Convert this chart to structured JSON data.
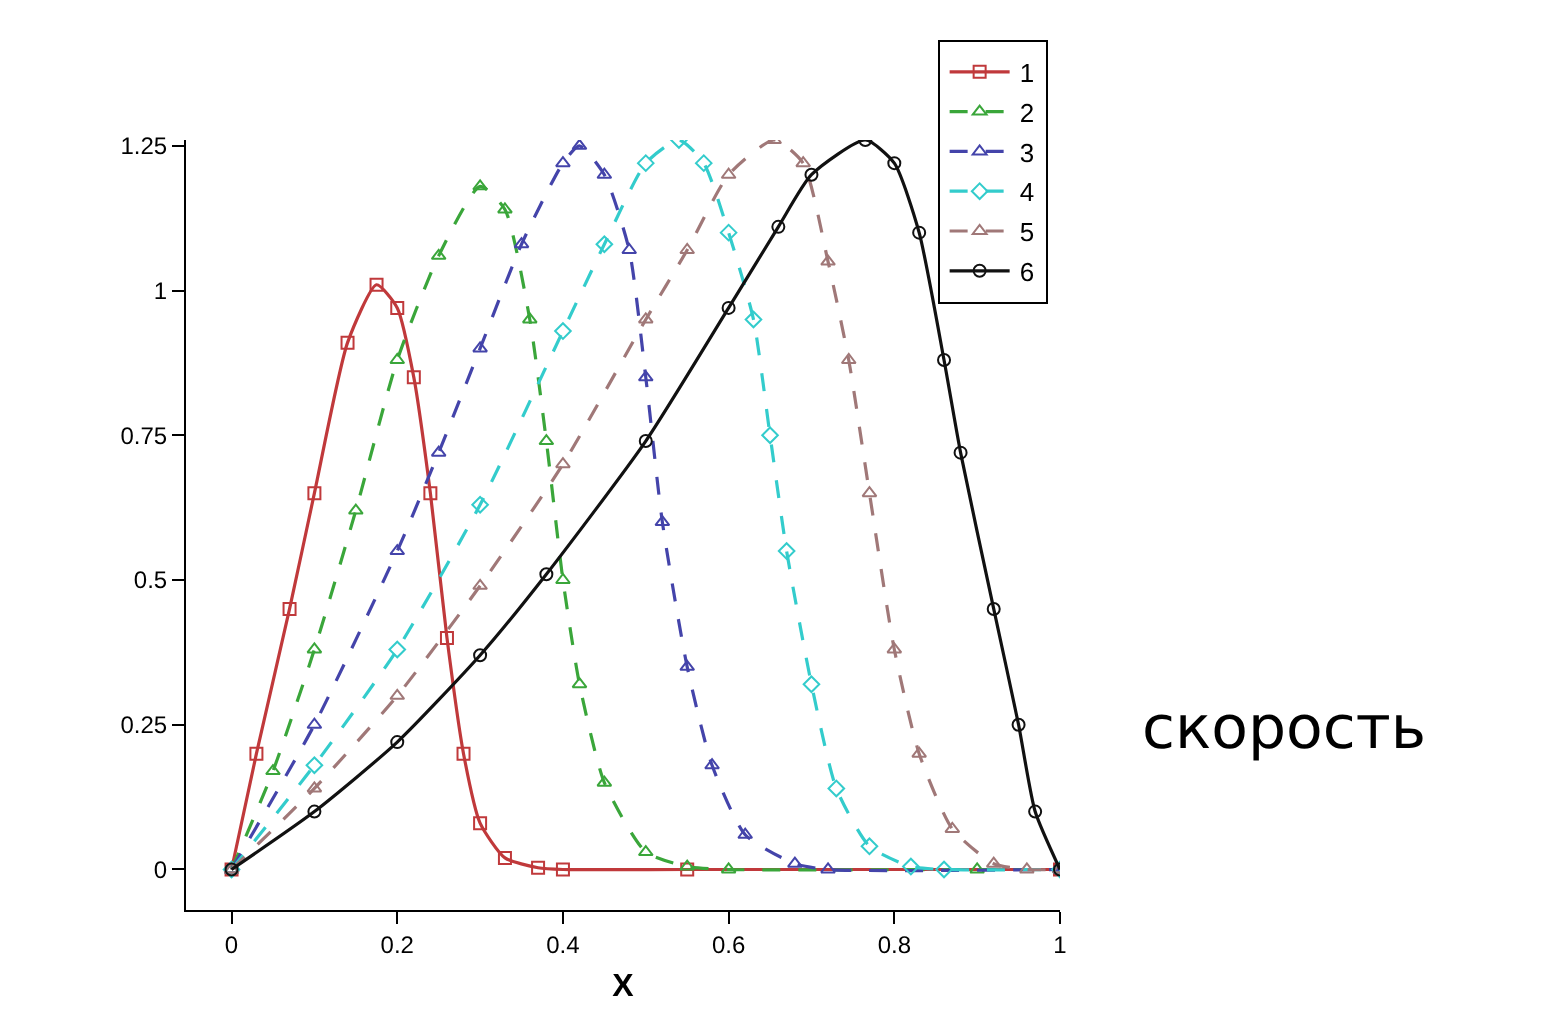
{
  "chart_data": {
    "type": "line",
    "xlabel": "X",
    "annotations": [
      "скорость"
    ],
    "xlim": [
      -0.055,
      1.0
    ],
    "ylim": [
      -0.07,
      1.26
    ],
    "xticks": [
      0,
      0.2,
      0.4,
      0.6,
      0.8,
      1
    ],
    "yticks": [
      0,
      {
        "value": 0.25,
        "label": "0.25"
      },
      {
        "value": 0.5,
        "label": "0.5"
      },
      {
        "value": 0.75,
        "label": "0.75"
      },
      1,
      {
        "value": 1.25,
        "label": "1.25"
      }
    ],
    "grid": false,
    "legend": "top right",
    "series": [
      {
        "name": "1",
        "color": "#c0393b",
        "marker": "square",
        "line_style": "solid",
        "x": [
          0,
          0.03,
          0.07,
          0.1,
          0.14,
          0.175,
          0.2,
          0.22,
          0.24,
          0.26,
          0.28,
          0.3,
          0.33,
          0.37,
          0.4,
          0.55,
          1
        ],
        "values": [
          0,
          0.2,
          0.45,
          0.65,
          0.91,
          1.01,
          0.97,
          0.85,
          0.65,
          0.4,
          0.2,
          0.08,
          0.02,
          0.003,
          0,
          0,
          0
        ]
      },
      {
        "name": "2",
        "color": "#3aa63a",
        "marker": "triangle",
        "line_style": "dashed",
        "x": [
          0,
          0.05,
          0.1,
          0.15,
          0.2,
          0.25,
          0.3,
          0.33,
          0.36,
          0.38,
          0.4,
          0.42,
          0.45,
          0.5,
          0.55,
          0.6,
          0.9,
          1
        ],
        "values": [
          0,
          0.17,
          0.38,
          0.62,
          0.88,
          1.06,
          1.18,
          1.14,
          0.95,
          0.74,
          0.5,
          0.32,
          0.15,
          0.03,
          0.005,
          0,
          0,
          0
        ]
      },
      {
        "name": "3",
        "color": "#4444aa",
        "marker": "triangle",
        "line_style": "dashed",
        "x": [
          0,
          0.1,
          0.2,
          0.25,
          0.3,
          0.35,
          0.4,
          0.42,
          0.45,
          0.48,
          0.5,
          0.52,
          0.55,
          0.58,
          0.62,
          0.68,
          0.72,
          1
        ],
        "values": [
          0,
          0.25,
          0.55,
          0.72,
          0.9,
          1.08,
          1.22,
          1.25,
          1.2,
          1.07,
          0.85,
          0.6,
          0.35,
          0.18,
          0.06,
          0.01,
          0,
          0
        ]
      },
      {
        "name": "4",
        "color": "#33cccc",
        "marker": "diamond",
        "line_style": "dashed",
        "x": [
          0,
          0.1,
          0.2,
          0.3,
          0.4,
          0.45,
          0.5,
          0.54,
          0.57,
          0.6,
          0.63,
          0.65,
          0.67,
          0.7,
          0.73,
          0.77,
          0.82,
          0.86,
          1
        ],
        "values": [
          0,
          0.18,
          0.38,
          0.63,
          0.93,
          1.08,
          1.22,
          1.26,
          1.22,
          1.1,
          0.95,
          0.75,
          0.55,
          0.32,
          0.14,
          0.04,
          0.005,
          0,
          0
        ]
      },
      {
        "name": "5",
        "color": "#a07878",
        "marker": "triangle",
        "line_style": "dashed",
        "x": [
          0,
          0.1,
          0.2,
          0.3,
          0.4,
          0.5,
          0.55,
          0.6,
          0.655,
          0.69,
          0.72,
          0.745,
          0.77,
          0.8,
          0.83,
          0.87,
          0.92,
          0.96,
          1
        ],
        "values": [
          0,
          0.14,
          0.3,
          0.49,
          0.7,
          0.95,
          1.07,
          1.2,
          1.26,
          1.22,
          1.05,
          0.88,
          0.65,
          0.38,
          0.2,
          0.07,
          0.01,
          0,
          0
        ]
      },
      {
        "name": "6",
        "color": "#111111",
        "marker": "circle",
        "line_style": "solid",
        "x": [
          0,
          0.1,
          0.2,
          0.3,
          0.38,
          0.5,
          0.6,
          0.66,
          0.7,
          0.765,
          0.8,
          0.83,
          0.86,
          0.88,
          0.92,
          0.95,
          0.97,
          1
        ],
        "values": [
          0,
          0.1,
          0.22,
          0.37,
          0.51,
          0.74,
          0.97,
          1.11,
          1.2,
          1.26,
          1.22,
          1.1,
          0.88,
          0.72,
          0.45,
          0.25,
          0.1,
          0
        ]
      }
    ]
  }
}
